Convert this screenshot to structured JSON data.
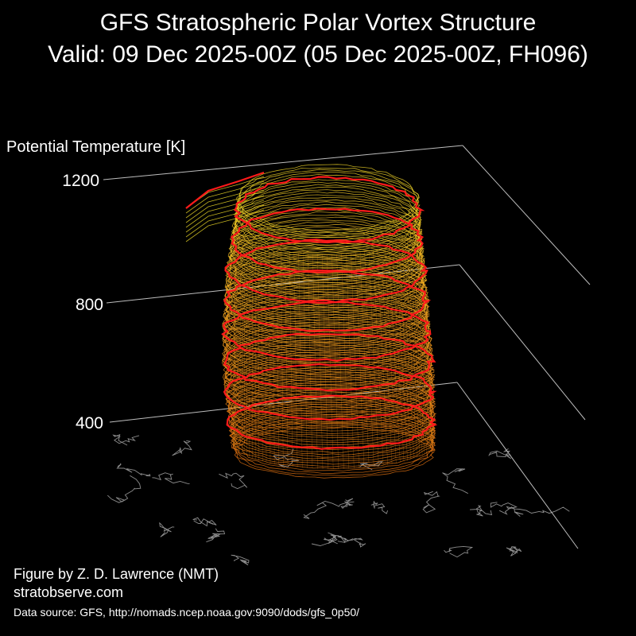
{
  "title": "GFS Stratospheric Polar Vortex Structure",
  "subtitle": "Valid: 09 Dec 2025-00Z  (05 Dec 2025-00Z, FH096)",
  "credit_author": "Figure by Z. D. Lawrence (NMT)",
  "credit_site": "stratobserve.com",
  "data_source": "Data source: GFS, http://nomads.ncep.noaa.gov:9090/dods/gfs_0p50/",
  "chart_data": {
    "type": "3d-isosurface",
    "title": "GFS Stratospheric Polar Vortex Structure",
    "subtitle": "Valid: 09 Dec 2025-00Z  (05 Dec 2025-00Z, FH096)",
    "zlabel": "Potential Temperature [K]",
    "z_ticks": [
      400,
      800,
      1200
    ],
    "zlim": [
      300,
      1200
    ],
    "red_contour_levels": [
      400,
      500,
      600,
      700,
      800,
      900,
      1000,
      1100
    ],
    "color_scale": "orange at low potential temperature to yellow at high potential temperature; red contour rings",
    "basemap": "gray coastlines below the vortex",
    "background": "#000000",
    "colors": {
      "high": "#f0dc28",
      "mid": "#f0a020",
      "low": "#e07010",
      "contour": "#ff1a1a",
      "coast": "#8c8c8c",
      "grid": "#bdbdbd"
    }
  }
}
